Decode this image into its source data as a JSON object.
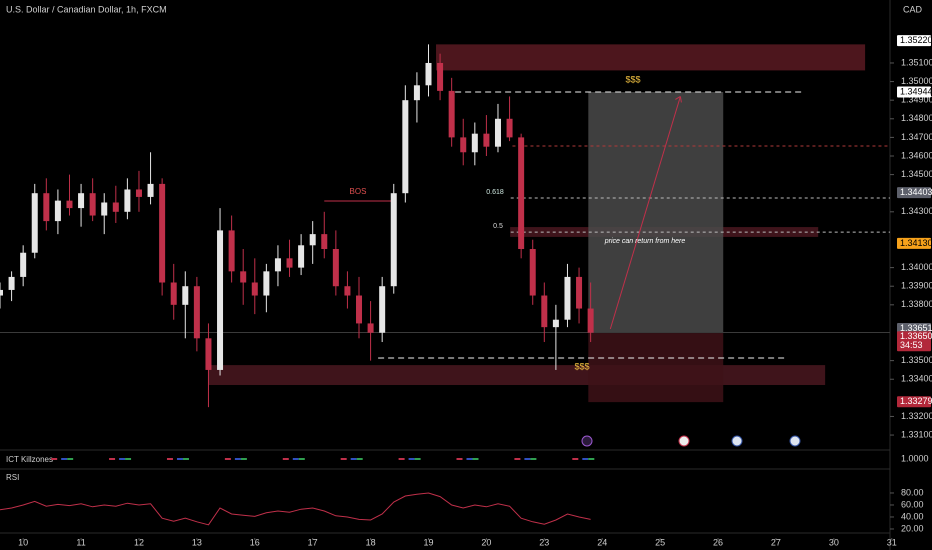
{
  "chart_data": {
    "type": "candlestick",
    "title": "U.S. Dollar / Canadian Dollar, 1h, FXCM",
    "currency": "CAD",
    "x": [
      -0.4,
      -0.2,
      0,
      0.2,
      0.4,
      0.6,
      0.8,
      1,
      1.2,
      1.4,
      1.6,
      1.8,
      2,
      2.2,
      2.4,
      2.6,
      2.8,
      3,
      3.2,
      3.4,
      3.6,
      3.8,
      4,
      4.2,
      4.4,
      4.6,
      4.8,
      5,
      5.2,
      5.4,
      5.6,
      5.8,
      6,
      6.2,
      6.4,
      6.6,
      6.8,
      7,
      7.2,
      7.4,
      7.6,
      7.8,
      8,
      8.2,
      8.4,
      8.6,
      8.8,
      9,
      9.2,
      9.4,
      9.6,
      9.8
    ],
    "candles": [
      [
        1.3385,
        1.3392,
        1.3378,
        1.3388
      ],
      [
        1.3388,
        1.3398,
        1.3382,
        1.3395
      ],
      [
        1.3395,
        1.3412,
        1.339,
        1.3408
      ],
      [
        1.3408,
        1.3445,
        1.3405,
        1.344
      ],
      [
        1.344,
        1.3448,
        1.342,
        1.3425
      ],
      [
        1.3425,
        1.3442,
        1.3418,
        1.3436
      ],
      [
        1.3436,
        1.345,
        1.3428,
        1.3432
      ],
      [
        1.3432,
        1.3445,
        1.3422,
        1.344
      ],
      [
        1.344,
        1.3448,
        1.3425,
        1.3428
      ],
      [
        1.3428,
        1.344,
        1.3418,
        1.3435
      ],
      [
        1.3435,
        1.3444,
        1.3424,
        1.343
      ],
      [
        1.343,
        1.3448,
        1.3426,
        1.3442
      ],
      [
        1.3442,
        1.3452,
        1.343,
        1.3438
      ],
      [
        1.3438,
        1.3462,
        1.3434,
        1.3445
      ],
      [
        1.3445,
        1.3448,
        1.3385,
        1.3392
      ],
      [
        1.3392,
        1.3402,
        1.3372,
        1.338
      ],
      [
        1.338,
        1.3398,
        1.3362,
        1.339
      ],
      [
        1.339,
        1.3395,
        1.3355,
        1.3362
      ],
      [
        1.3362,
        1.337,
        1.3325,
        1.3345
      ],
      [
        1.3345,
        1.3432,
        1.3342,
        1.342
      ],
      [
        1.342,
        1.3428,
        1.3392,
        1.3398
      ],
      [
        1.3398,
        1.341,
        1.338,
        1.3392
      ],
      [
        1.3392,
        1.3405,
        1.3375,
        1.3385
      ],
      [
        1.3385,
        1.3402,
        1.3376,
        1.3398
      ],
      [
        1.3398,
        1.3412,
        1.339,
        1.3405
      ],
      [
        1.3405,
        1.3415,
        1.3395,
        1.34
      ],
      [
        1.34,
        1.3418,
        1.3396,
        1.3412
      ],
      [
        1.3412,
        1.3425,
        1.3402,
        1.3418
      ],
      [
        1.3418,
        1.343,
        1.3405,
        1.341
      ],
      [
        1.341,
        1.342,
        1.3385,
        1.339
      ],
      [
        1.339,
        1.3398,
        1.3378,
        1.3385
      ],
      [
        1.3385,
        1.3395,
        1.3362,
        1.337
      ],
      [
        1.337,
        1.3382,
        1.335,
        1.3365
      ],
      [
        1.3365,
        1.3395,
        1.336,
        1.339
      ],
      [
        1.339,
        1.3445,
        1.3386,
        1.344
      ],
      [
        1.344,
        1.3498,
        1.3435,
        1.349
      ],
      [
        1.349,
        1.3505,
        1.3478,
        1.3498
      ],
      [
        1.3498,
        1.352,
        1.3492,
        1.351
      ],
      [
        1.351,
        1.3515,
        1.349,
        1.3495
      ],
      [
        1.3495,
        1.3502,
        1.3465,
        1.347
      ],
      [
        1.347,
        1.348,
        1.3455,
        1.3462
      ],
      [
        1.3462,
        1.3478,
        1.3455,
        1.3472
      ],
      [
        1.3472,
        1.3482,
        1.346,
        1.3465
      ],
      [
        1.3465,
        1.3488,
        1.3462,
        1.348
      ],
      [
        1.348,
        1.3492,
        1.3468,
        1.347
      ],
      [
        1.347,
        1.3472,
        1.3405,
        1.341
      ],
      [
        1.341,
        1.3415,
        1.338,
        1.3385
      ],
      [
        1.3385,
        1.3392,
        1.336,
        1.3368
      ],
      [
        1.3368,
        1.338,
        1.3345,
        1.3372
      ],
      [
        1.3372,
        1.3402,
        1.3368,
        1.3395
      ],
      [
        1.3395,
        1.34,
        1.337,
        1.3378
      ],
      [
        1.3378,
        1.3392,
        1.336,
        1.3365
      ]
    ],
    "colors": {
      "up": "#e6e6e6",
      "down": "#c0304a"
    },
    "xlim": [
      -0.4,
      14.97
    ],
    "xticks": [
      {
        "value": 0,
        "label": "10"
      },
      {
        "value": 1,
        "label": "11"
      },
      {
        "value": 2,
        "label": "12"
      },
      {
        "value": 3,
        "label": "13"
      },
      {
        "value": 4,
        "label": "16"
      },
      {
        "value": 5,
        "label": "17"
      },
      {
        "value": 6,
        "label": "18"
      },
      {
        "value": 7,
        "label": "19"
      },
      {
        "value": 8,
        "label": "20"
      },
      {
        "value": 9,
        "label": "23"
      },
      {
        "value": 10,
        "label": "24"
      },
      {
        "value": 11,
        "label": "25"
      },
      {
        "value": 12,
        "label": "26"
      },
      {
        "value": 13,
        "label": "27"
      },
      {
        "value": 14,
        "label": "30"
      },
      {
        "value": 15,
        "label": "31"
      }
    ],
    "ylim": [
      1.33025,
      1.35331
    ],
    "yticks": [
      {
        "value": 1.351,
        "label": "1.35100"
      },
      {
        "value": 1.35,
        "label": "1.35000"
      },
      {
        "value": 1.349,
        "label": "1.34900"
      },
      {
        "value": 1.348,
        "label": "1.34800"
      },
      {
        "value": 1.347,
        "label": "1.34700"
      },
      {
        "value": 1.346,
        "label": "1.34600"
      },
      {
        "value": 1.345,
        "label": "1.34500"
      },
      {
        "value": 1.343,
        "label": "1.34300"
      },
      {
        "value": 1.34,
        "label": "1.34000"
      },
      {
        "value": 1.339,
        "label": "1.33900"
      },
      {
        "value": 1.338,
        "label": "1.33800"
      },
      {
        "value": 1.335,
        "label": "1.33500"
      },
      {
        "value": 1.334,
        "label": "1.33400"
      },
      {
        "value": 1.332,
        "label": "1.33200"
      },
      {
        "value": 1.331,
        "label": "1.33100"
      }
    ],
    "zones": [
      {
        "x0": 7.13,
        "x1": 14.54,
        "y0": 1.3506,
        "y1": 1.352,
        "color": "#5a1a22"
      },
      {
        "x0": 8.41,
        "x1": 13.73,
        "y0": 1.34165,
        "y1": 1.34218,
        "color": "#4a1820"
      },
      {
        "x0": 3.2,
        "x1": 13.85,
        "y0": 1.33369,
        "y1": 1.33476,
        "color": "#4a1820"
      },
      {
        "x0": 9.76,
        "x1": 12.09,
        "y0": 1.33648,
        "y1": 1.34944,
        "color": "#4a4a4a"
      },
      {
        "x0": 9.76,
        "x1": 12.09,
        "y0": 1.33277,
        "y1": 1.33648,
        "color": "#3e1218"
      }
    ],
    "levels": [
      {
        "x0": 7.46,
        "x1": 13.5,
        "y": 1.34944,
        "color": "#f0f0f0",
        "dash": "6 4"
      },
      {
        "x0": 8.45,
        "x1": 15.0,
        "y": 1.34654,
        "color": "#b03a3a",
        "dash": "3 3"
      },
      {
        "x0": 8.42,
        "x1": 15.0,
        "y": 1.34374,
        "color": "#bbbbbb",
        "dash": "3 3"
      },
      {
        "x0": 8.42,
        "x1": 15.0,
        "y": 1.34191,
        "color": "#bbbbbb",
        "dash": "3 3"
      },
      {
        "x0": 6.13,
        "x1": 13.2,
        "y": 1.33514,
        "color": "#f0f0f0",
        "dash": "6 4"
      },
      {
        "x0": 5.2,
        "x1": 6.4,
        "y": 1.34358,
        "color": "#c0304a",
        "dash": ""
      },
      {
        "x0": -0.4,
        "x1": 15.0,
        "y": 1.33651,
        "color": "#3a3a3a",
        "dash": ""
      }
    ],
    "arrow": {
      "x0": 10.14,
      "y0": 1.3367,
      "x1": 11.35,
      "y1": 1.3492,
      "color": "#c0304a"
    },
    "annotations": [
      {
        "text": "BOS",
        "color": "#e04f4f"
      },
      {
        "text": "$$$",
        "color": "#f0c040"
      },
      {
        "text": "$$$",
        "color": "#f0c040"
      },
      {
        "text": "0.618",
        "color": "#cfe8e0"
      },
      {
        "text": "0.5",
        "color": "#dddddd"
      },
      {
        "text": "price can return from here",
        "color": "#ffffff"
      }
    ],
    "price_labels": [
      {
        "value": 1.3522,
        "label": "1.35220",
        "bg": "#ffffff",
        "fg": "#000000"
      },
      {
        "value": 1.34944,
        "label": "1.34944",
        "bg": "#ffffff",
        "fg": "#000000"
      },
      {
        "value": 1.34403,
        "label": "1.34403",
        "bg": "#5d606b",
        "fg": "#ffffff"
      },
      {
        "value": 1.3413,
        "label": "1.34130",
        "bg": "#f7a21b",
        "fg": "#000000"
      },
      {
        "value": 1.33651,
        "label": "1.33651",
        "bg": "#5d606b",
        "fg": "#ffffff"
      },
      {
        "value": 1.3365,
        "label": "1.33650",
        "bg": "#b2283a",
        "fg": "#ffffff"
      },
      {
        "value": 1.33279,
        "label": "1.33279",
        "bg": "#b2283a",
        "fg": "#ffffff"
      }
    ],
    "countdown": "34:53",
    "killzones": {
      "title": "ICT Killzones",
      "tick": {
        "value": 1,
        "label": "1.0000"
      }
    },
    "rsi": {
      "title": "RSI",
      "color": "#c0304a",
      "ylim": [
        -11.7,
        118.3
      ],
      "yticks": [
        {
          "value": 80,
          "label": "80.00"
        },
        {
          "value": 60,
          "label": "60.00"
        },
        {
          "value": 40,
          "label": "40.00"
        },
        {
          "value": 20,
          "label": "20.00"
        }
      ],
      "values": [
        52,
        55,
        60,
        66,
        58,
        61,
        59,
        62,
        57,
        60,
        58,
        63,
        60,
        62,
        38,
        33,
        38,
        32,
        27,
        55,
        45,
        43,
        41,
        47,
        50,
        48,
        53,
        55,
        50,
        42,
        40,
        36,
        35,
        45,
        65,
        75,
        78,
        80,
        74,
        60,
        55,
        60,
        57,
        62,
        58,
        38,
        32,
        28,
        35,
        45,
        40,
        36
      ]
    }
  }
}
